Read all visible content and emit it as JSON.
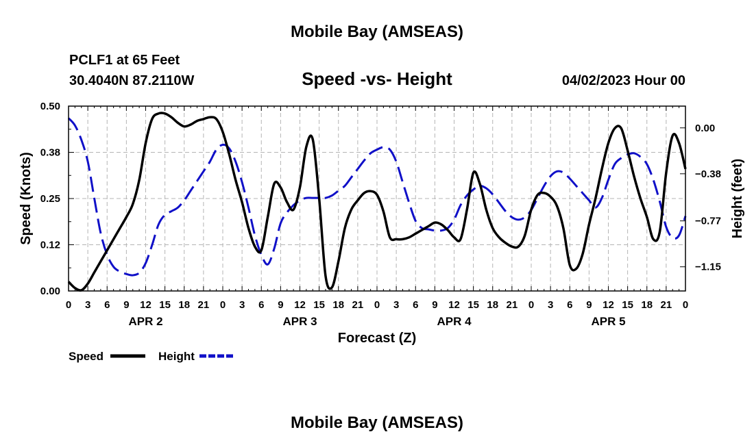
{
  "header": {
    "top_title": "Mobile Bay (AMSEAS)",
    "station": "PCLF1 at 65 Feet",
    "coords": "30.4040N  87.2110W",
    "subtitle": "Speed -vs- Height",
    "run_time": "04/02/2023 Hour 00",
    "bottom_title": "Mobile Bay (AMSEAS)"
  },
  "legend": {
    "speed_label": "Speed",
    "height_label": "Height"
  },
  "colors": {
    "speed": "#000000",
    "height": "#1010c8",
    "grid": "#b4b4b4"
  },
  "chart_data": {
    "type": "line",
    "title": "Speed -vs- Height",
    "xlabel": "Forecast (Z)",
    "ylabel": "Speed (Knots)",
    "y2label": "Height (feet)",
    "xlim": [
      0,
      96
    ],
    "ylim": [
      0,
      0.5
    ],
    "y2lim": [
      -1.35,
      0.18
    ],
    "x_ticks": [
      0,
      3,
      6,
      9,
      12,
      15,
      18,
      21,
      24,
      27,
      30,
      33,
      36,
      39,
      42,
      45,
      48,
      51,
      54,
      57,
      60,
      63,
      66,
      69,
      72,
      75,
      78,
      81,
      84,
      87,
      90,
      93,
      96
    ],
    "x_tick_labels": [
      "0",
      "3",
      "6",
      "9",
      "12",
      "15",
      "18",
      "21",
      "0",
      "3",
      "6",
      "9",
      "12",
      "15",
      "18",
      "21",
      "0",
      "3",
      "6",
      "9",
      "12",
      "15",
      "18",
      "21",
      "0",
      "3",
      "6",
      "9",
      "12",
      "15",
      "18",
      "21",
      "0"
    ],
    "y_ticks": [
      0.0,
      0.125,
      0.25,
      0.375,
      0.5
    ],
    "y_tick_labels": [
      "0.00",
      "0.12",
      "0.25",
      "0.38",
      "0.50"
    ],
    "y2_ticks": [
      0.0,
      -0.38,
      -0.77,
      -1.15
    ],
    "y2_tick_labels": [
      "0.00",
      "−0.38",
      "−0.77",
      "−1.15"
    ],
    "day_labels": [
      {
        "x": 12,
        "label": "APR 2"
      },
      {
        "x": 36,
        "label": "APR 3"
      },
      {
        "x": 60,
        "label": "APR 4"
      },
      {
        "x": 84,
        "label": "APR 5"
      }
    ],
    "grid": true,
    "legend_position": "bottom-left",
    "series": [
      {
        "name": "Speed",
        "axis": "left",
        "style": "solid",
        "x": [
          0,
          1,
          2,
          3,
          4,
          5,
          6,
          7,
          8,
          9,
          10,
          11,
          12,
          13,
          14,
          15,
          16,
          17,
          18,
          19,
          20,
          21,
          22,
          23,
          24,
          25,
          26,
          27,
          28,
          29,
          30,
          31,
          32,
          33,
          34,
          35,
          36,
          37,
          38,
          39,
          40,
          41,
          42,
          43,
          44,
          45,
          46,
          47,
          48,
          49,
          50,
          51,
          52,
          53,
          54,
          55,
          56,
          57,
          58,
          59,
          60,
          61,
          62,
          63,
          64,
          65,
          66,
          67,
          68,
          69,
          70,
          71,
          72,
          73,
          74,
          75,
          76,
          77,
          78,
          79,
          80,
          81,
          82,
          83,
          84,
          85,
          86,
          87,
          88,
          89,
          90,
          91,
          92,
          93,
          94,
          95,
          96
        ],
        "y": [
          0.025,
          0.008,
          0.002,
          0.02,
          0.05,
          0.08,
          0.11,
          0.14,
          0.17,
          0.2,
          0.235,
          0.3,
          0.4,
          0.465,
          0.48,
          0.48,
          0.47,
          0.455,
          0.445,
          0.45,
          0.46,
          0.465,
          0.47,
          0.465,
          0.43,
          0.37,
          0.3,
          0.24,
          0.17,
          0.12,
          0.11,
          0.2,
          0.29,
          0.28,
          0.24,
          0.22,
          0.28,
          0.39,
          0.41,
          0.25,
          0.04,
          0.01,
          0.08,
          0.17,
          0.22,
          0.245,
          0.265,
          0.27,
          0.26,
          0.215,
          0.145,
          0.14,
          0.14,
          0.145,
          0.155,
          0.165,
          0.175,
          0.185,
          0.18,
          0.165,
          0.145,
          0.14,
          0.22,
          0.32,
          0.29,
          0.22,
          0.17,
          0.145,
          0.13,
          0.12,
          0.12,
          0.15,
          0.22,
          0.26,
          0.265,
          0.255,
          0.23,
          0.17,
          0.07,
          0.06,
          0.1,
          0.18,
          0.25,
          0.33,
          0.4,
          0.44,
          0.44,
          0.38,
          0.31,
          0.25,
          0.2,
          0.14,
          0.16,
          0.32,
          0.42,
          0.4,
          0.33
        ]
      },
      {
        "name": "Height",
        "axis": "right",
        "style": "dashed",
        "x": [
          0,
          1,
          2,
          3,
          4,
          5,
          6,
          7,
          8,
          9,
          10,
          11,
          12,
          13,
          14,
          15,
          16,
          17,
          18,
          19,
          20,
          21,
          22,
          23,
          24,
          25,
          26,
          27,
          28,
          29,
          30,
          31,
          32,
          33,
          34,
          35,
          36,
          37,
          38,
          39,
          40,
          41,
          42,
          43,
          44,
          45,
          46,
          47,
          48,
          49,
          50,
          51,
          52,
          53,
          54,
          55,
          56,
          57,
          58,
          59,
          60,
          61,
          62,
          63,
          64,
          65,
          66,
          67,
          68,
          69,
          70,
          71,
          72,
          73,
          74,
          75,
          76,
          77,
          78,
          79,
          80,
          81,
          82,
          83,
          84,
          85,
          86,
          87,
          88,
          89,
          90,
          91,
          92,
          93,
          94,
          95,
          96
        ],
        "y": [
          0.08,
          0.02,
          -0.1,
          -0.28,
          -0.58,
          -0.87,
          -1.05,
          -1.15,
          -1.19,
          -1.21,
          -1.22,
          -1.2,
          -1.12,
          -0.97,
          -0.8,
          -0.72,
          -0.69,
          -0.66,
          -0.6,
          -0.52,
          -0.44,
          -0.36,
          -0.28,
          -0.18,
          -0.14,
          -0.17,
          -0.28,
          -0.45,
          -0.66,
          -0.89,
          -1.05,
          -1.13,
          -1.0,
          -0.79,
          -0.7,
          -0.64,
          -0.6,
          -0.58,
          -0.58,
          -0.58,
          -0.58,
          -0.56,
          -0.52,
          -0.48,
          -0.41,
          -0.34,
          -0.27,
          -0.21,
          -0.18,
          -0.16,
          -0.18,
          -0.28,
          -0.45,
          -0.62,
          -0.77,
          -0.83,
          -0.84,
          -0.85,
          -0.85,
          -0.83,
          -0.76,
          -0.64,
          -0.56,
          -0.51,
          -0.48,
          -0.5,
          -0.55,
          -0.62,
          -0.69,
          -0.74,
          -0.76,
          -0.74,
          -0.68,
          -0.58,
          -0.48,
          -0.4,
          -0.36,
          -0.37,
          -0.42,
          -0.48,
          -0.54,
          -0.6,
          -0.66,
          -0.58,
          -0.43,
          -0.3,
          -0.25,
          -0.22,
          -0.21,
          -0.24,
          -0.3,
          -0.43,
          -0.61,
          -0.82,
          -0.91,
          -0.89,
          -0.73
        ]
      }
    ]
  }
}
